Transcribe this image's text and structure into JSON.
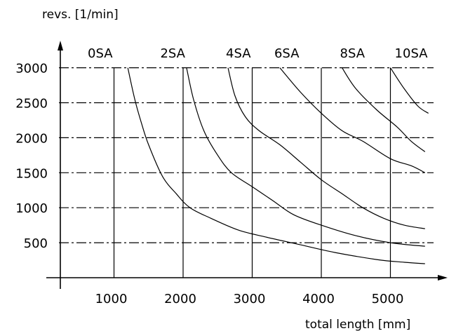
{
  "chart_data": {
    "type": "line",
    "title": "",
    "ylabel": "revs. [1/min]",
    "xlabel": "total length [mm]",
    "xlim": [
      0,
      5600
    ],
    "ylim": [
      0,
      3250
    ],
    "x_ticks": [
      1000,
      2000,
      3000,
      4000,
      5000
    ],
    "y_ticks": [
      500,
      1000,
      1500,
      2000,
      2500,
      3000
    ],
    "grid": true,
    "series": [
      {
        "name": "0SA",
        "points": []
      },
      {
        "name": "2SA",
        "points": [
          [
            1200,
            3000
          ],
          [
            1300,
            2550
          ],
          [
            1400,
            2200
          ],
          [
            1500,
            1900
          ],
          [
            1700,
            1450
          ],
          [
            1900,
            1200
          ],
          [
            2100,
            1000
          ],
          [
            2400,
            850
          ],
          [
            2800,
            680
          ],
          [
            3200,
            580
          ],
          [
            3700,
            470
          ],
          [
            4200,
            360
          ],
          [
            4800,
            260
          ],
          [
            5200,
            220
          ],
          [
            5500,
            200
          ]
        ]
      },
      {
        "name": "4SA",
        "points": [
          [
            2050,
            3000
          ],
          [
            2150,
            2550
          ],
          [
            2300,
            2100
          ],
          [
            2500,
            1750
          ],
          [
            2700,
            1500
          ],
          [
            3000,
            1300
          ],
          [
            3300,
            1100
          ],
          [
            3600,
            900
          ],
          [
            4000,
            750
          ],
          [
            4500,
            600
          ],
          [
            5000,
            500
          ],
          [
            5500,
            450
          ]
        ]
      },
      {
        "name": "6SA",
        "points": [
          [
            2650,
            3000
          ],
          [
            2750,
            2600
          ],
          [
            2900,
            2300
          ],
          [
            3100,
            2100
          ],
          [
            3400,
            1900
          ],
          [
            3700,
            1650
          ],
          [
            4000,
            1400
          ],
          [
            4300,
            1200
          ],
          [
            4600,
            1000
          ],
          [
            4900,
            850
          ],
          [
            5200,
            750
          ],
          [
            5500,
            700
          ]
        ]
      },
      {
        "name": "8SA",
        "points": [
          [
            3400,
            3000
          ],
          [
            3700,
            2650
          ],
          [
            4000,
            2350
          ],
          [
            4300,
            2100
          ],
          [
            4600,
            1950
          ],
          [
            5000,
            1700
          ],
          [
            5300,
            1600
          ],
          [
            5500,
            1500
          ]
        ]
      },
      {
        "name": "10SA",
        "points": [
          [
            4300,
            3000
          ],
          [
            4500,
            2700
          ],
          [
            4800,
            2400
          ],
          [
            5100,
            2150
          ],
          [
            5300,
            1950
          ],
          [
            5500,
            1800
          ]
        ]
      },
      {
        "name": "",
        "points": [
          [
            5000,
            3000
          ],
          [
            5200,
            2700
          ],
          [
            5400,
            2450
          ],
          [
            5550,
            2350
          ]
        ]
      }
    ],
    "series_labels": [
      {
        "text": "0SA",
        "x": 800
      },
      {
        "text": "2SA",
        "x": 1850
      },
      {
        "text": "4SA",
        "x": 2800
      },
      {
        "text": "6SA",
        "x": 3500
      },
      {
        "text": "8SA",
        "x": 4450
      },
      {
        "text": "10SA",
        "x": 5300
      }
    ]
  }
}
